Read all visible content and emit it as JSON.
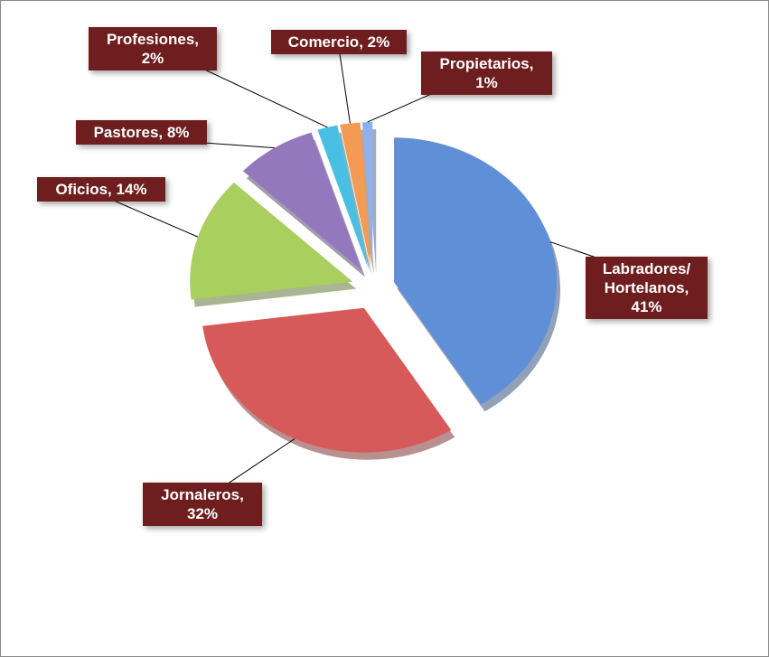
{
  "chart_data": {
    "type": "pie",
    "values": [
      41,
      32,
      14,
      8,
      2,
      2,
      1
    ],
    "value_labels": [
      "Labradores/ Hortelanos, 41%",
      "Jornaleros, 32%",
      "Oficios, 14%",
      "Pastores, 8%",
      "Profesiones, 2%",
      "Comercio, 2%",
      "Propietarios, 1%"
    ],
    "colors": [
      "#5f8fd6",
      "#d65a5a",
      "#a9cf5e",
      "#9478bd",
      "#49bfe3",
      "#f39a55",
      "#8fb0ec"
    ]
  }
}
